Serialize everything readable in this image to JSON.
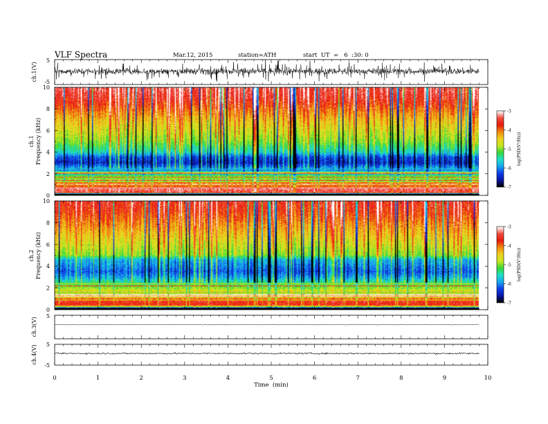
{
  "header": {
    "title": "VLF  Spectra",
    "date": "Mar.12, 2015",
    "station": "station=ATH",
    "start": "start  UT  =   6  :30: 0"
  },
  "colors": {
    "colormap": [
      "#ffffff",
      "#f04a3c",
      "#e81a10",
      "#f08a10",
      "#f0d020",
      "#c8e820",
      "#38d838",
      "#20e0c8",
      "#18a8f0",
      "#1040e8",
      "#0818a8",
      "#000000"
    ],
    "trace": "#000000",
    "axis": "#000000"
  },
  "chart_data": [
    {
      "type": "line",
      "panel": "ch1-waveform",
      "ylabel": "ch.1(V)",
      "ylim": [
        -5,
        5
      ],
      "yticks": [
        "5",
        "-5"
      ],
      "xlim": [
        0,
        10
      ],
      "series": [
        {
          "description_free": true,
          "noise_amplitude_V": 1.2,
          "baseline_V": 0.3,
          "spike_amplitude_V": 3.5,
          "duration_min": 9.8
        }
      ]
    },
    {
      "type": "heatmap",
      "panel": "ch1-spectrogram",
      "ylabel": "ch.1 Frequency (kHz)",
      "ylabel_line1": "ch.1",
      "ylabel_line2": "Frequency (kHz)",
      "ylim": [
        0,
        10
      ],
      "yticks": [
        "0",
        "2",
        "4",
        "6",
        "8",
        "10"
      ],
      "xlim": [
        0,
        10
      ],
      "duration_min": 9.8,
      "colorbar": {
        "label": "log(PSD(V²/Hz))",
        "min": -7,
        "max": -3,
        "ticks": [
          "-3",
          "-4",
          "-5",
          "-6",
          "-7"
        ]
      },
      "profile_logPSD": [
        {
          "f_kHz": 0.0,
          "v": -7.0
        },
        {
          "f_kHz": 0.3,
          "v": -3.2
        },
        {
          "f_kHz": 0.6,
          "v": -3.6
        },
        {
          "f_kHz": 1.0,
          "v": -4.6
        },
        {
          "f_kHz": 1.5,
          "v": -5.0
        },
        {
          "f_kHz": 2.0,
          "v": -5.3
        },
        {
          "f_kHz": 2.5,
          "v": -5.9
        },
        {
          "f_kHz": 3.0,
          "v": -6.5
        },
        {
          "f_kHz": 3.5,
          "v": -6.3
        },
        {
          "f_kHz": 4.0,
          "v": -5.6
        },
        {
          "f_kHz": 5.0,
          "v": -5.0
        },
        {
          "f_kHz": 6.0,
          "v": -4.7
        },
        {
          "f_kHz": 7.0,
          "v": -4.4
        },
        {
          "f_kHz": 8.0,
          "v": -4.0
        },
        {
          "f_kHz": 9.0,
          "v": -3.6
        },
        {
          "f_kHz": 10.0,
          "v": -3.4
        }
      ]
    },
    {
      "type": "heatmap",
      "panel": "ch2-spectrogram",
      "ylabel": "ch.2 Frequency (kHz)",
      "ylabel_line1": "ch.2",
      "ylabel_line2": "Frequency (kHz)",
      "ylim": [
        0,
        10
      ],
      "yticks": [
        "0",
        "2",
        "4",
        "6",
        "8",
        "10"
      ],
      "xlim": [
        0,
        10
      ],
      "duration_min": 9.8,
      "colorbar": {
        "label": "log(PSD(V²/Hz))",
        "min": -7,
        "max": -3,
        "ticks": [
          "-3",
          "-4",
          "-5",
          "-6",
          "-7"
        ]
      },
      "profile_logPSD": [
        {
          "f_kHz": 0.0,
          "v": -6.8
        },
        {
          "f_kHz": 0.4,
          "v": -3.6
        },
        {
          "f_kHz": 1.0,
          "v": -4.0
        },
        {
          "f_kHz": 1.5,
          "v": -4.5
        },
        {
          "f_kHz": 2.0,
          "v": -5.0
        },
        {
          "f_kHz": 2.5,
          "v": -5.4
        },
        {
          "f_kHz": 3.0,
          "v": -5.9
        },
        {
          "f_kHz": 3.5,
          "v": -6.2
        },
        {
          "f_kHz": 4.0,
          "v": -6.0
        },
        {
          "f_kHz": 4.6,
          "v": -5.8
        },
        {
          "f_kHz": 5.0,
          "v": -5.0
        },
        {
          "f_kHz": 6.0,
          "v": -4.7
        },
        {
          "f_kHz": 7.0,
          "v": -4.4
        },
        {
          "f_kHz": 8.0,
          "v": -4.1
        },
        {
          "f_kHz": 9.0,
          "v": -3.8
        },
        {
          "f_kHz": 10.0,
          "v": -3.6
        }
      ]
    },
    {
      "type": "line",
      "panel": "ch3-waveform",
      "ylabel": "ch.3(V)",
      "ylim": [
        -5,
        5
      ],
      "yticks": [
        "5"
      ],
      "xlim": [
        0,
        10
      ],
      "series": [
        {
          "baseline_V": 1.0,
          "noise_amplitude_V": 0.15,
          "duration_min": 9.8
        }
      ]
    },
    {
      "type": "line",
      "panel": "ch4-waveform",
      "ylabel": "ch.4(V)",
      "ylim": [
        -5,
        5
      ],
      "yticks": [
        "5",
        "-5"
      ],
      "xlim": [
        0,
        10
      ],
      "xlabel": "Time  (min)",
      "xticks": [
        "0",
        "1",
        "2",
        "3",
        "4",
        "5",
        "6",
        "7",
        "8",
        "9",
        "10"
      ],
      "series": [
        {
          "baseline_V": 0.6,
          "noise_amplitude_V": 0.35,
          "duration_min": 9.8
        }
      ]
    }
  ]
}
